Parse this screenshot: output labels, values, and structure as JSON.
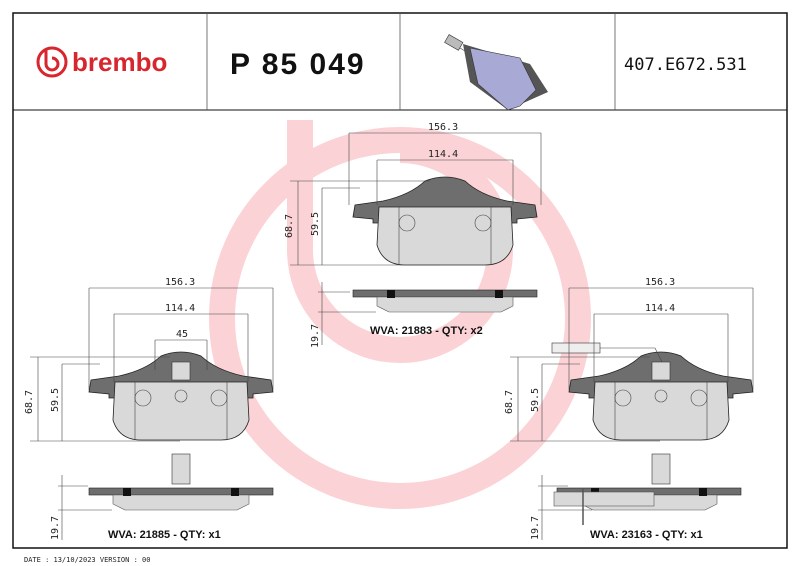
{
  "header": {
    "brand": "brembo",
    "part_number": "P 85 049",
    "reference_code": "407.E672.531"
  },
  "colors": {
    "brand_red": "#d8262e",
    "watermark": "#fbd3d6",
    "backing_plate": "#6e6e6e",
    "friction": "#d9d9d9",
    "render": "#a9a9d6"
  },
  "views": {
    "top": {
      "width_total": "156.3",
      "width_inner": "114.4",
      "height_total": "68.7",
      "height_inner": "59.5",
      "thickness": "19.7",
      "label": "WVA: 21883 - QTY: x2"
    },
    "left": {
      "width_total": "156.3",
      "width_inner": "114.4",
      "width_center": "45",
      "height_total": "68.7",
      "height_inner": "59.5",
      "thickness": "19.7",
      "label": "WVA: 21885 - QTY: x1"
    },
    "right": {
      "width_total": "156.3",
      "width_inner": "114.4",
      "height_total": "68.7",
      "height_inner": "59.5",
      "thickness": "19.7",
      "label": "WVA: 23163 - QTY: x1"
    }
  },
  "footer": {
    "date_version": "DATE : 13/10/2023 VERSION : 00"
  }
}
